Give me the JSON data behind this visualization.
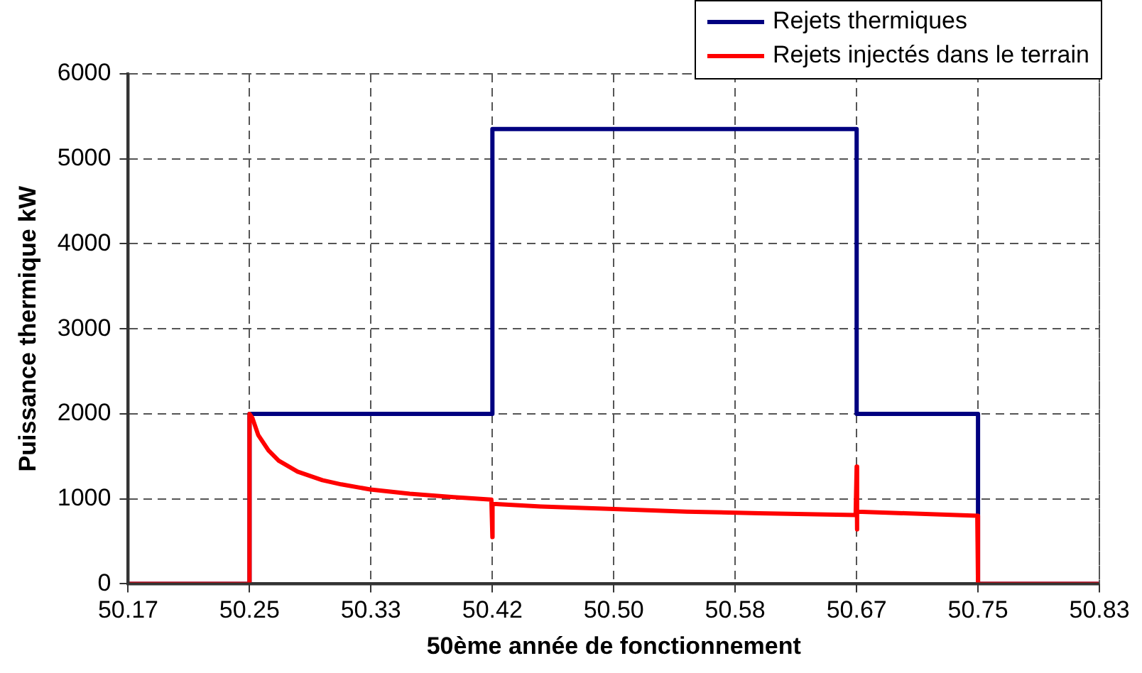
{
  "chart_data": {
    "type": "line",
    "xlabel": "50ème année de fonctionnement",
    "ylabel": "Puissance thermique kW",
    "xlim": [
      50.1667,
      50.8333
    ],
    "xticks": [
      {
        "value": 50.1667,
        "label": "50.17"
      },
      {
        "value": 50.25,
        "label": "50.25"
      },
      {
        "value": 50.3333,
        "label": "50.33"
      },
      {
        "value": 50.4167,
        "label": "50.42"
      },
      {
        "value": 50.5,
        "label": "50.50"
      },
      {
        "value": 50.5833,
        "label": "50.58"
      },
      {
        "value": 50.6667,
        "label": "50.67"
      },
      {
        "value": 50.75,
        "label": "50.75"
      },
      {
        "value": 50.8333,
        "label": "50.83"
      }
    ],
    "ylim": [
      0,
      6000
    ],
    "yticks": [
      0,
      1000,
      2000,
      3000,
      4000,
      5000,
      6000
    ],
    "grid": true,
    "legend": "top right",
    "marker": "none",
    "line_style": "solid",
    "series": [
      {
        "name": "Rejets thermiques",
        "type": "step",
        "color": "#000080",
        "x": [
          50.1667,
          50.25,
          50.4167,
          50.6667,
          50.75,
          50.8333
        ],
        "values": [
          0,
          2000,
          5350,
          2000,
          0,
          0
        ]
      },
      {
        "name": "Rejets injectés dans le terrain",
        "type": "line",
        "color": "#ff0000",
        "x": [
          50.1667,
          50.2495,
          50.25,
          50.252,
          50.256,
          50.263,
          50.27,
          50.283,
          50.3,
          50.313,
          50.333,
          50.36,
          50.39,
          50.416,
          50.4167,
          50.4168,
          50.4172,
          50.45,
          50.5,
          50.55,
          50.6,
          50.666,
          50.6667,
          50.6668,
          50.6672,
          50.7,
          50.7495,
          50.75,
          50.8333
        ],
        "values": [
          0,
          0,
          2000,
          1950,
          1750,
          1570,
          1450,
          1320,
          1220,
          1170,
          1110,
          1060,
          1020,
          990,
          550,
          940,
          940,
          910,
          880,
          850,
          830,
          810,
          1380,
          640,
          850,
          830,
          800,
          0,
          0
        ]
      }
    ]
  }
}
